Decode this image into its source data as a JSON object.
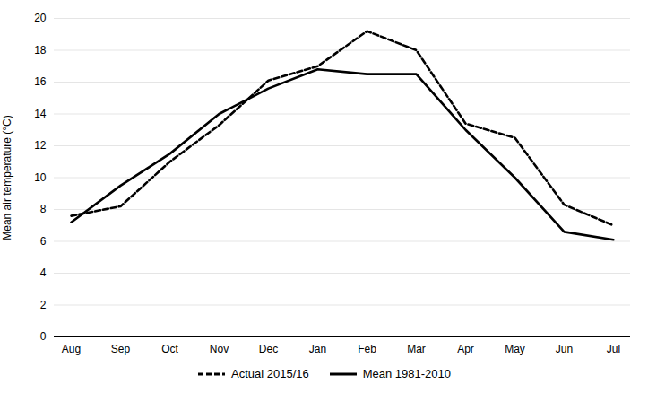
{
  "chart_data": {
    "type": "line",
    "categories": [
      "Aug",
      "Sep",
      "Oct",
      "Nov",
      "Dec",
      "Jan",
      "Feb",
      "Mar",
      "Apr",
      "May",
      "Jun",
      "Jul"
    ],
    "series": [
      {
        "name": "Actual 2015/16",
        "color": "#000000",
        "line_style": "dashed",
        "values": [
          7.6,
          8.2,
          11.0,
          13.3,
          16.1,
          17.0,
          19.2,
          18.0,
          13.4,
          12.5,
          8.3,
          7.0
        ]
      },
      {
        "name": "Mean 1981-2010",
        "color": "#000000",
        "line_style": "solid",
        "values": [
          7.2,
          9.5,
          11.5,
          14.0,
          15.6,
          16.8,
          16.5,
          16.5,
          13.0,
          10.0,
          6.6,
          6.1
        ]
      }
    ],
    "ylabel": "Mean air temperature (°C)",
    "ylim": [
      0,
      20
    ],
    "yticks": [
      0,
      2,
      4,
      6,
      8,
      10,
      12,
      14,
      16,
      18,
      20
    ],
    "grid": true,
    "legend": "bottom"
  }
}
